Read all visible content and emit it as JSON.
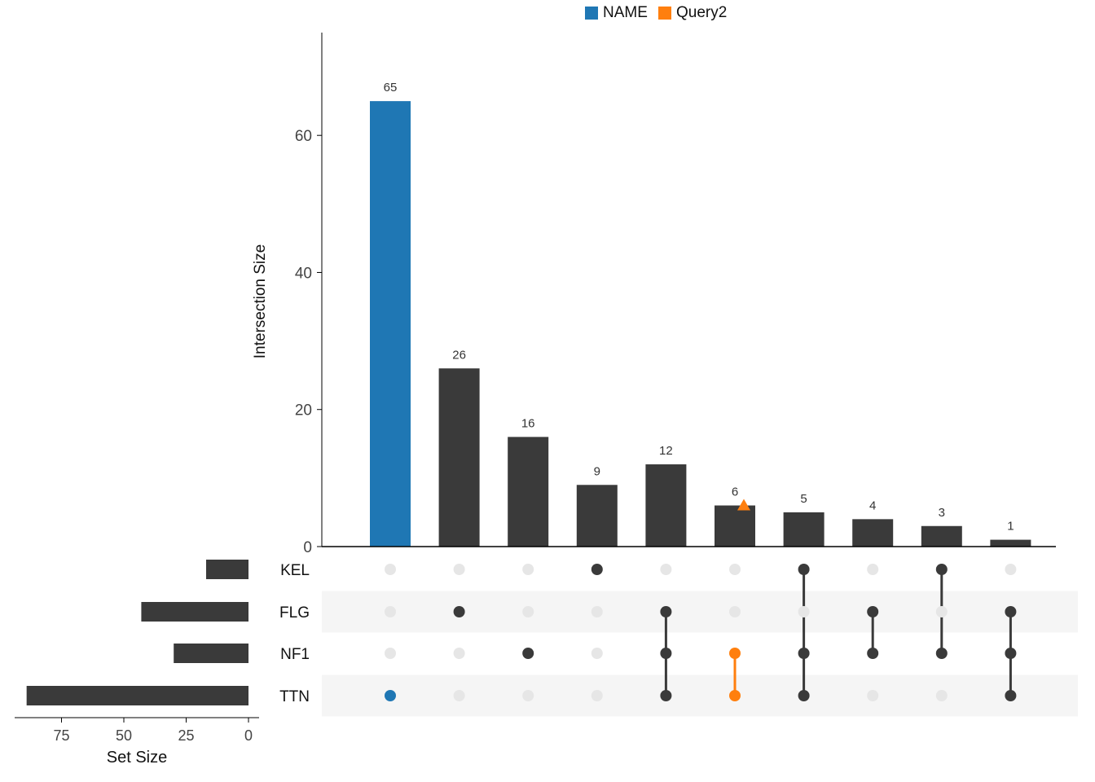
{
  "legend": [
    {
      "label": "NAME",
      "color": "#1f77b4"
    },
    {
      "label": "Query2",
      "color": "#ff7f0e"
    }
  ],
  "chart_data": {
    "type": "bar",
    "title": "",
    "ylabel": "Intersection Size",
    "ylim": [
      0,
      75
    ],
    "yticks": [
      0,
      20,
      40,
      60
    ],
    "sets": [
      "KEL",
      "FLG",
      "NF1",
      "TTN"
    ],
    "set_sizes": {
      "xlabel": "Set Size",
      "values": [
        17,
        43,
        30,
        89
      ],
      "xticks": [
        75,
        50,
        25,
        0
      ]
    },
    "intersections": [
      {
        "value": 65,
        "sets": [
          "TTN"
        ],
        "query": "NAME"
      },
      {
        "value": 26,
        "sets": [
          "FLG"
        ],
        "query": ""
      },
      {
        "value": 16,
        "sets": [
          "NF1"
        ],
        "query": ""
      },
      {
        "value": 9,
        "sets": [
          "KEL"
        ],
        "query": ""
      },
      {
        "value": 12,
        "sets": [
          "FLG",
          "NF1",
          "TTN"
        ],
        "query": ""
      },
      {
        "value": 6,
        "sets": [
          "NF1",
          "TTN"
        ],
        "query": "Query2",
        "query_marker_value": 6
      },
      {
        "value": 5,
        "sets": [
          "KEL",
          "NF1",
          "TTN"
        ],
        "query": ""
      },
      {
        "value": 4,
        "sets": [
          "FLG",
          "NF1"
        ],
        "query": ""
      },
      {
        "value": 3,
        "sets": [
          "KEL",
          "NF1"
        ],
        "query": ""
      },
      {
        "value": 1,
        "sets": [
          "FLG",
          "NF1",
          "TTN"
        ],
        "query": ""
      }
    ],
    "colors": {
      "bar": "#3a3a3a",
      "dot_inactive": "#e6e6e6",
      "stripe": "#f5f5f5",
      "NAME": "#1f77b4",
      "Query2": "#ff7f0e"
    }
  }
}
